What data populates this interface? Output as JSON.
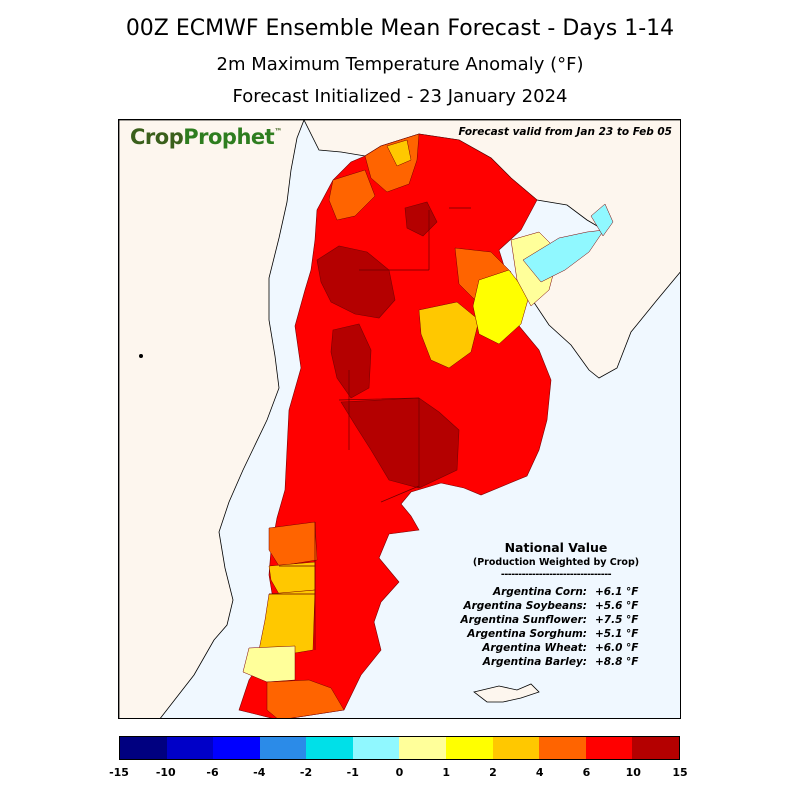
{
  "title": {
    "line1": "00Z ECMWF Ensemble Mean Forecast  -  Days 1-14",
    "line2": "2m Maximum Temperature Anomaly (°F)",
    "line3": "Forecast Initialized - 23 January 2024"
  },
  "logo": {
    "part1": "Crop",
    "part2": "Prophet",
    "tm": "™"
  },
  "valid_text": "Forecast valid from Jan 23 to Feb 05",
  "national": {
    "title": "National Value",
    "subtitle": "(Production Weighted by Crop)",
    "divider": "--------------------------------",
    "rows": [
      {
        "label": "Argentina Corn:",
        "value": "+6.1 °F"
      },
      {
        "label": "Argentina Soybeans:",
        "value": "+5.6 °F"
      },
      {
        "label": "Argentina Sunflower:",
        "value": "+7.5 °F"
      },
      {
        "label": "Argentina Sorghum:",
        "value": "+5.1 °F"
      },
      {
        "label": "Argentina Wheat:",
        "value": "+6.0 °F"
      },
      {
        "label": "Argentina Barley:",
        "value": "+8.8 °F"
      }
    ]
  },
  "colorbar": {
    "colors": [
      "#000080",
      "#0000c8",
      "#0000ff",
      "#2b8be8",
      "#00e0e8",
      "#90f8ff",
      "#ffff9a",
      "#ffff00",
      "#ffc800",
      "#ff6400",
      "#ff0000",
      "#b40000"
    ],
    "ticks": [
      "-15",
      "-10",
      "-6",
      "-4",
      "-2",
      "-1",
      "0",
      "1",
      "2",
      "4",
      "6",
      "10",
      "15"
    ]
  },
  "colors": {
    "ocean": "#f0f8ff",
    "land": "#fdf6ee",
    "dark_red": "#b40000",
    "red": "#ff0000",
    "orange": "#ff6400",
    "gold": "#ffc800",
    "yellow": "#ffff00",
    "light_yellow": "#ffff9a",
    "light_cyan": "#90f8ff"
  }
}
